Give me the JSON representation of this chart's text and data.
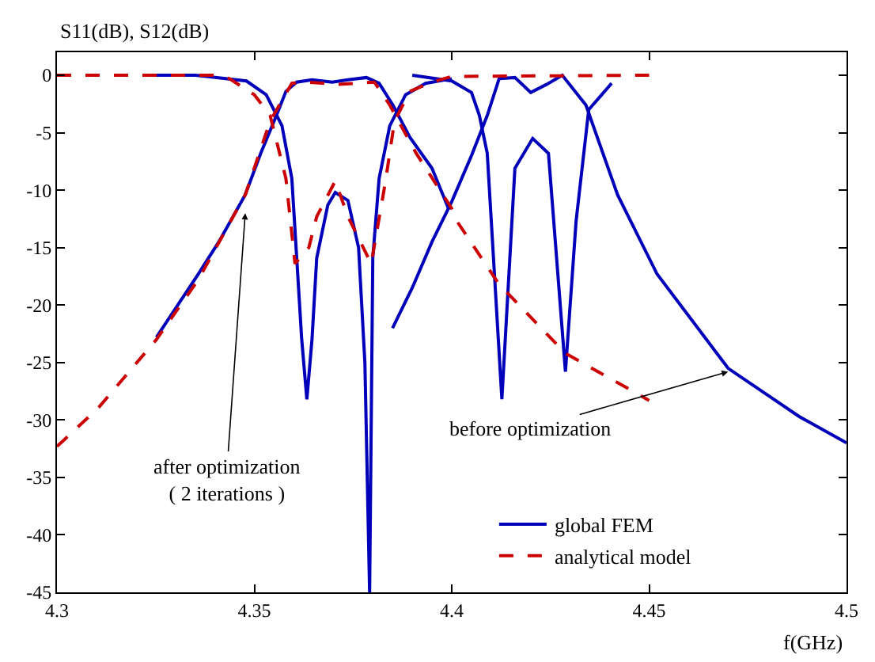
{
  "chart_data": {
    "type": "line",
    "ylabel": "S11(dB), S12(dB)",
    "xlabel": "f(GHz)",
    "xlim": [
      4.3,
      4.5
    ],
    "xticks": [
      4.3,
      4.35,
      4.4,
      4.45,
      4.5
    ],
    "ylim": [
      -45,
      2
    ],
    "yticks": [
      0,
      -5,
      -10,
      -15,
      -20,
      -25,
      -30,
      -35,
      -40,
      -45
    ],
    "legend": "bottom right",
    "marker": "none",
    "series": [
      {
        "name": "global FEM",
        "color": "#0000bb",
        "line_style": "solid",
        "x": [
          4.325,
          4.335,
          4.348,
          4.353,
          4.357,
          4.3595,
          4.362,
          4.3633,
          4.3646,
          4.3658,
          4.3686,
          4.3705,
          4.3737,
          4.3764,
          4.378,
          4.3792,
          4.38,
          4.3816,
          4.3843,
          4.3883,
          4.3934,
          4.4
        ],
        "values": [
          0,
          0,
          -0.5,
          -1.7,
          -4.4,
          -9,
          -23,
          -28.2,
          -23,
          -15.9,
          -11.3,
          -10.2,
          -10.9,
          -15,
          -25,
          -45,
          -15.9,
          -9,
          -4.4,
          -1.7,
          -0.7,
          -0.3
        ]
      },
      {
        "color": "#0000bb",
        "line_style": "solid",
        "x": [
          4.3252,
          4.3358,
          4.341,
          4.3477,
          4.3516,
          4.3556,
          4.358,
          4.3607,
          4.3646,
          4.3697,
          4.3737,
          4.3784,
          4.3816,
          4.3851,
          4.3894,
          4.395,
          4.3993
        ],
        "values": [
          -22.8,
          -17.3,
          -14.5,
          -10.4,
          -6.8,
          -3.5,
          -1.4,
          -0.6,
          -0.4,
          -0.6,
          -0.4,
          -0.2,
          -0.7,
          -2.6,
          -5.4,
          -8.1,
          -11.7
        ]
      },
      {
        "color": "#0000bb",
        "line_style": "solid",
        "x": [
          4.39,
          4.4,
          4.405,
          4.407,
          4.409,
          4.4127,
          4.416,
          4.4205,
          4.4245,
          4.4288,
          4.4315,
          4.4347,
          4.4405
        ],
        "values": [
          0,
          -0.5,
          -1.5,
          -3.5,
          -6.8,
          -28.2,
          -8.1,
          -5.5,
          -6.8,
          -25.8,
          -12.7,
          -3,
          -0.7
        ]
      },
      {
        "color": "#0000bb",
        "line_style": "solid",
        "x": [
          4.385,
          4.39,
          4.395,
          4.4,
          4.405,
          4.409,
          4.412,
          4.416,
          4.42,
          4.424,
          4.428,
          4.434,
          4.442,
          4.452,
          4.47,
          4.488,
          4.5
        ],
        "values": [
          -22,
          -18.5,
          -14.5,
          -11,
          -7,
          -3.5,
          -0.3,
          -0.2,
          -1.5,
          -0.8,
          0,
          -2.6,
          -10.4,
          -17.3,
          -25.5,
          -29.7,
          -32
        ]
      },
      {
        "name": "analytical model",
        "color": "#cc0000",
        "line_style": "dashed",
        "x": [
          4.3,
          4.34,
          4.3437,
          4.35,
          4.354,
          4.358,
          4.3603,
          4.3638,
          4.3658,
          4.3705,
          4.3737,
          4.3796,
          4.3831,
          4.3855,
          4.3894,
          4.395,
          4.4,
          4.45
        ],
        "values": [
          0,
          0,
          -0.3,
          -1.7,
          -3.5,
          -9,
          -16.4,
          -15,
          -12.3,
          -9.2,
          -12.3,
          -16.4,
          -9.5,
          -4,
          -1.4,
          -0.6,
          -0.1,
          0
        ]
      },
      {
        "color": "#cc0000",
        "line_style": "dashed",
        "x": [
          4.3,
          4.3016,
          4.3106,
          4.3252,
          4.3358,
          4.3477,
          4.354,
          4.3595,
          4.3634,
          4.3713,
          4.3804,
          4.3843,
          4.391,
          4.4,
          4.4013,
          4.412,
          4.4288,
          4.45
        ],
        "values": [
          -32.3,
          -31.8,
          -28.9,
          -23,
          -17.8,
          -10.4,
          -4,
          -0.7,
          -0.6,
          -0.8,
          -0.6,
          -2.6,
          -6.8,
          -11.6,
          -12.7,
          -18.2,
          -24.2,
          -28.3
        ]
      }
    ],
    "annotations": [
      {
        "text": "after optimization\n( 2 iterations )",
        "x": 4.3477,
        "y": -12
      },
      {
        "text": "before optimization",
        "x": 4.47,
        "y": -25.8
      }
    ]
  }
}
